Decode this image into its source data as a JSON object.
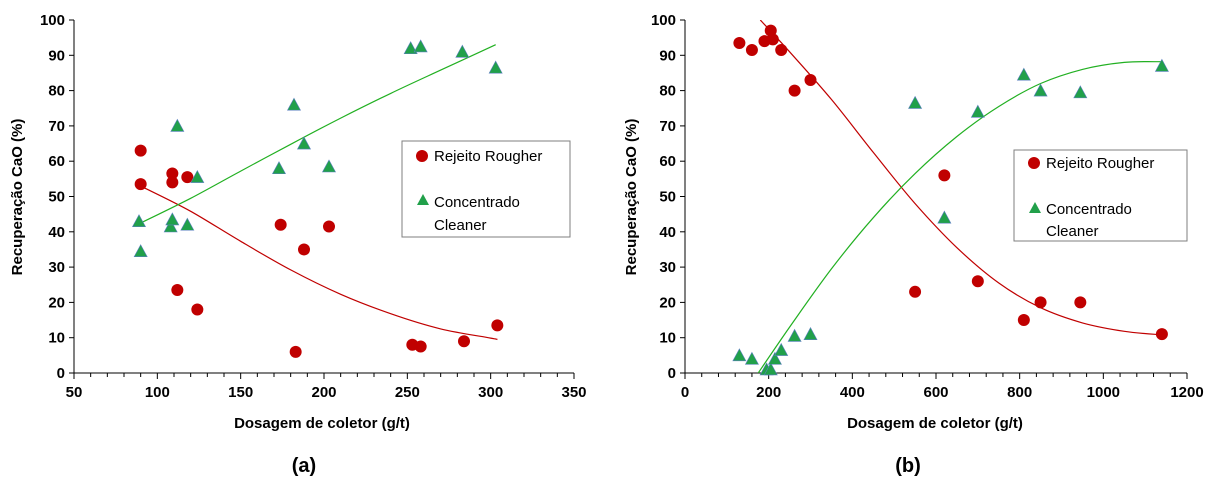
{
  "colors": {
    "rejeito": "#c00000",
    "concentrado": "#21a04a",
    "trend_red": "#c00000",
    "trend_green": "#22b022",
    "axis": "#000000",
    "legend_border": "#7f7f7f"
  },
  "chart_data": [
    {
      "type": "scatter",
      "panel_label": "(a)",
      "xlabel": "Dosagem de coletor (g/t)",
      "ylabel": "Recuperação  CaO (%)",
      "xlim": [
        50,
        350
      ],
      "ylim": [
        0,
        100
      ],
      "xticks": [
        "50",
        "100",
        "150",
        "200",
        "250",
        "300",
        "350"
      ],
      "yticks": [
        "0",
        "10",
        "20",
        "30",
        "40",
        "50",
        "60",
        "70",
        "80",
        "90",
        "100"
      ],
      "grid": false,
      "legend_placement": "right",
      "series": [
        {
          "name": "Rejeito Rougher",
          "marker": "circle",
          "points": [
            [
              90,
              63
            ],
            [
              90,
              53.5
            ],
            [
              109,
              56.5
            ],
            [
              109,
              54
            ],
            [
              112,
              23.5
            ],
            [
              118,
              55.5
            ],
            [
              124,
              18
            ],
            [
              174,
              42
            ],
            [
              183,
              6
            ],
            [
              188,
              35
            ],
            [
              203,
              41.5
            ],
            [
              253,
              8
            ],
            [
              258,
              7.5
            ],
            [
              284,
              9
            ],
            [
              304,
              13.5
            ]
          ],
          "trend": [
            [
              92,
              52.5
            ],
            [
              120,
              45.8
            ],
            [
              150,
              37.3
            ],
            [
              180,
              29.2
            ],
            [
              210,
              22.3
            ],
            [
              240,
              16.8
            ],
            [
              270,
              12.5
            ],
            [
              300,
              9.9
            ],
            [
              304,
              9.5
            ]
          ]
        },
        {
          "name": "Concentrado Cleaner",
          "marker": "triangle",
          "points": [
            [
              89,
              43
            ],
            [
              90,
              34.5
            ],
            [
              108,
              41.5
            ],
            [
              109,
              43.5
            ],
            [
              112,
              70
            ],
            [
              118,
              42
            ],
            [
              124,
              55.5
            ],
            [
              173,
              58
            ],
            [
              182,
              76
            ],
            [
              188,
              65
            ],
            [
              203,
              58.5
            ],
            [
              252,
              92
            ],
            [
              258,
              92.5
            ],
            [
              283,
              91
            ],
            [
              303,
              86.5
            ]
          ],
          "trend": [
            [
              90,
              42.5
            ],
            [
              120,
              49.5
            ],
            [
              150,
              57.2
            ],
            [
              180,
              64.8
            ],
            [
              210,
              72.2
            ],
            [
              240,
              79.2
            ],
            [
              270,
              85.8
            ],
            [
              303,
              93
            ]
          ]
        }
      ]
    },
    {
      "type": "scatter",
      "panel_label": "(b)",
      "xlabel": "Dosagem de coletor (g/t)",
      "ylabel": "Recuperação  CaO (%)",
      "xlim": [
        0,
        1200
      ],
      "ylim": [
        0,
        100
      ],
      "xticks": [
        "0",
        "200",
        "400",
        "600",
        "800",
        "1000",
        "1200"
      ],
      "yticks": [
        "0",
        "10",
        "20",
        "30",
        "40",
        "50",
        "60",
        "70",
        "80",
        "90",
        "100"
      ],
      "grid": false,
      "legend_placement": "right",
      "series": [
        {
          "name": "Rejeito Rougher",
          "marker": "circle",
          "points": [
            [
              130,
              93.5
            ],
            [
              160,
              91.5
            ],
            [
              190,
              94
            ],
            [
              205,
              97
            ],
            [
              210,
              94.5
            ],
            [
              230,
              91.5
            ],
            [
              262,
              80
            ],
            [
              300,
              83
            ],
            [
              550,
              23
            ],
            [
              620,
              56
            ],
            [
              700,
              26
            ],
            [
              810,
              15
            ],
            [
              850,
              20
            ],
            [
              945,
              20
            ],
            [
              1140,
              11
            ]
          ],
          "trend": [
            [
              180,
              100
            ],
            [
              250,
              91
            ],
            [
              350,
              77.5
            ],
            [
              450,
              62.5
            ],
            [
              550,
              48
            ],
            [
              650,
              35.5
            ],
            [
              750,
              25.5
            ],
            [
              850,
              18.5
            ],
            [
              950,
              14.2
            ],
            [
              1050,
              11.8
            ],
            [
              1140,
              10.8
            ]
          ]
        },
        {
          "name": "Concentrado Cleaner",
          "marker": "triangle",
          "points": [
            [
              130,
              5
            ],
            [
              160,
              4
            ],
            [
              195,
              1
            ],
            [
              205,
              1
            ],
            [
              215,
              4
            ],
            [
              230,
              6.5
            ],
            [
              262,
              10.5
            ],
            [
              300,
              11
            ],
            [
              550,
              76.5
            ],
            [
              620,
              44
            ],
            [
              700,
              74
            ],
            [
              810,
              84.5
            ],
            [
              850,
              80
            ],
            [
              945,
              79.5
            ],
            [
              1140,
              87
            ]
          ],
          "trend": [
            [
              175,
              0
            ],
            [
              250,
              13
            ],
            [
              350,
              29.5
            ],
            [
              450,
              44
            ],
            [
              550,
              56.5
            ],
            [
              650,
              67
            ],
            [
              750,
              75.5
            ],
            [
              850,
              82
            ],
            [
              950,
              86
            ],
            [
              1050,
              88
            ],
            [
              1140,
              88.2
            ]
          ]
        }
      ]
    }
  ]
}
